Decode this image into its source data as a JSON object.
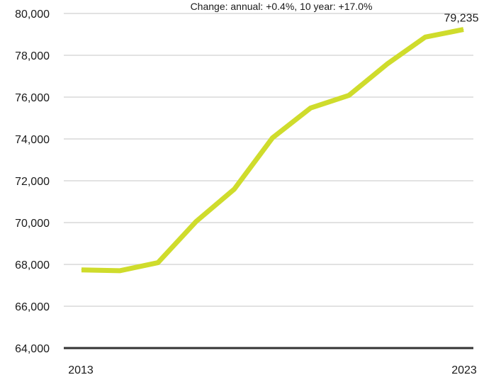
{
  "chart_data": {
    "type": "line",
    "subtitle": "Change: annual: +0.4%, 10 year: +17.0%",
    "x": [
      2013,
      2014,
      2015,
      2016,
      2017,
      2018,
      2019,
      2020,
      2021,
      2022,
      2023
    ],
    "x_tick_labels": [
      "2013",
      "2023"
    ],
    "series": [
      {
        "values": [
          67740,
          67700,
          68080,
          70050,
          71600,
          74050,
          75480,
          76080,
          77580,
          78870,
          79235
        ],
        "color": "#cfdc2c"
      }
    ],
    "end_value_label": "79,235",
    "ylim": [
      64000,
      80000
    ],
    "y_ticks": [
      64000,
      66000,
      68000,
      70000,
      72000,
      74000,
      76000,
      78000,
      80000
    ],
    "y_tick_labels": [
      "64,000",
      "66,000",
      "68,000",
      "70,000",
      "72,000",
      "74,000",
      "76,000",
      "78,000",
      "80,000"
    ],
    "grid": true,
    "colors": {
      "line": "#cfdc2c",
      "grid": "#d9d9d9",
      "baseline": "#333333"
    }
  }
}
